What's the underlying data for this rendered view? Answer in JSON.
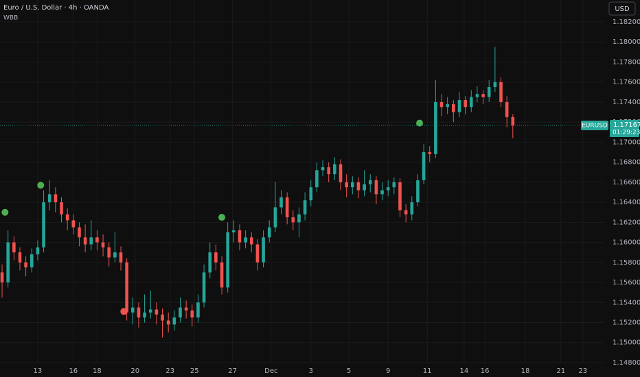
{
  "chart_data": {
    "type": "candlestick",
    "title": "Euro / U.S. Dollar · 4h · OANDA",
    "indicator": "WBB",
    "currency_button": "USD",
    "symbol": "EURUSD",
    "countdown": "01:29:23",
    "up_color": "#26a69a",
    "down_color": "#ef5350",
    "grid": true,
    "candles": [
      [
        1.157,
        1.1578,
        1.1545,
        1.156
      ],
      [
        1.156,
        1.1612,
        1.1555,
        1.16
      ],
      [
        1.16,
        1.1606,
        1.1582,
        1.159
      ],
      [
        1.159,
        1.1595,
        1.1572,
        1.158
      ],
      [
        1.158,
        1.1586,
        1.1566,
        1.1575
      ],
      [
        1.1575,
        1.1594,
        1.157,
        1.1588
      ],
      [
        1.1588,
        1.1602,
        1.1582,
        1.1595
      ],
      [
        1.1595,
        1.1652,
        1.159,
        1.164
      ],
      [
        1.164,
        1.1662,
        1.1632,
        1.1648
      ],
      [
        1.1648,
        1.1655,
        1.163,
        1.164
      ],
      [
        1.164,
        1.1645,
        1.162,
        1.1628
      ],
      [
        1.1628,
        1.1634,
        1.1612,
        1.1622
      ],
      [
        1.1622,
        1.1628,
        1.1608,
        1.1615
      ],
      [
        1.1615,
        1.162,
        1.1596,
        1.1605
      ],
      [
        1.1605,
        1.1618,
        1.159,
        1.1598
      ],
      [
        1.1598,
        1.1622,
        1.1592,
        1.1605
      ],
      [
        1.1605,
        1.1612,
        1.1592,
        1.16
      ],
      [
        1.16,
        1.1608,
        1.1586,
        1.1595
      ],
      [
        1.1595,
        1.16,
        1.1576,
        1.1585
      ],
      [
        1.1585,
        1.161,
        1.158,
        1.159
      ],
      [
        1.159,
        1.1596,
        1.1572,
        1.158
      ],
      [
        1.158,
        1.1584,
        1.1522,
        1.153
      ],
      [
        1.153,
        1.1545,
        1.1518,
        1.1535
      ],
      [
        1.1535,
        1.154,
        1.1515,
        1.1525
      ],
      [
        1.1525,
        1.1548,
        1.152,
        1.153
      ],
      [
        1.153,
        1.1552,
        1.1524,
        1.1533
      ],
      [
        1.1533,
        1.154,
        1.1518,
        1.1528
      ],
      [
        1.1528,
        1.1534,
        1.1505,
        1.1522
      ],
      [
        1.1522,
        1.153,
        1.151,
        1.1518
      ],
      [
        1.1518,
        1.1532,
        1.1512,
        1.1525
      ],
      [
        1.1525,
        1.1545,
        1.152,
        1.1535
      ],
      [
        1.1535,
        1.1542,
        1.1524,
        1.1532
      ],
      [
        1.1532,
        1.1538,
        1.1516,
        1.1525
      ],
      [
        1.1525,
        1.1548,
        1.152,
        1.154
      ],
      [
        1.154,
        1.1578,
        1.1535,
        1.157
      ],
      [
        1.157,
        1.16,
        1.1564,
        1.159
      ],
      [
        1.159,
        1.1598,
        1.1572,
        1.158
      ],
      [
        1.158,
        1.1586,
        1.1548,
        1.1555
      ],
      [
        1.1555,
        1.162,
        1.155,
        1.161
      ],
      [
        1.161,
        1.1622,
        1.16,
        1.1612
      ],
      [
        1.1612,
        1.1618,
        1.1592,
        1.16
      ],
      [
        1.16,
        1.1612,
        1.1594,
        1.1605
      ],
      [
        1.1605,
        1.161,
        1.159,
        1.1598
      ],
      [
        1.1598,
        1.1603,
        1.1572,
        1.158
      ],
      [
        1.158,
        1.1612,
        1.1575,
        1.1605
      ],
      [
        1.1605,
        1.1622,
        1.16,
        1.1615
      ],
      [
        1.1615,
        1.166,
        1.161,
        1.1635
      ],
      [
        1.1635,
        1.1652,
        1.1628,
        1.1645
      ],
      [
        1.1645,
        1.165,
        1.1618,
        1.1625
      ],
      [
        1.1625,
        1.1632,
        1.1612,
        1.162
      ],
      [
        1.162,
        1.1635,
        1.1605,
        1.1628
      ],
      [
        1.1628,
        1.165,
        1.1622,
        1.1642
      ],
      [
        1.1642,
        1.1662,
        1.1636,
        1.1655
      ],
      [
        1.1655,
        1.168,
        1.165,
        1.1672
      ],
      [
        1.1672,
        1.1682,
        1.1666,
        1.1675
      ],
      [
        1.1675,
        1.168,
        1.166,
        1.1668
      ],
      [
        1.1668,
        1.1685,
        1.1662,
        1.1678
      ],
      [
        1.1678,
        1.1683,
        1.1652,
        1.166
      ],
      [
        1.166,
        1.1668,
        1.1645,
        1.1655
      ],
      [
        1.1655,
        1.1666,
        1.1648,
        1.166
      ],
      [
        1.166,
        1.1665,
        1.1644,
        1.1652
      ],
      [
        1.1652,
        1.1672,
        1.1646,
        1.1658
      ],
      [
        1.1658,
        1.1668,
        1.165,
        1.1662
      ],
      [
        1.1662,
        1.1666,
        1.1638,
        1.1648
      ],
      [
        1.1648,
        1.166,
        1.1642,
        1.1652
      ],
      [
        1.1652,
        1.1662,
        1.1646,
        1.1655
      ],
      [
        1.1655,
        1.1665,
        1.1648,
        1.166
      ],
      [
        1.166,
        1.1664,
        1.1625,
        1.1632
      ],
      [
        1.1632,
        1.1638,
        1.162,
        1.1628
      ],
      [
        1.1628,
        1.1646,
        1.1622,
        1.164
      ],
      [
        1.164,
        1.1668,
        1.1636,
        1.1662
      ],
      [
        1.1662,
        1.1698,
        1.1658,
        1.169
      ],
      [
        1.169,
        1.1696,
        1.168,
        1.1688
      ],
      [
        1.1688,
        1.1762,
        1.1684,
        1.174
      ],
      [
        1.174,
        1.1748,
        1.1726,
        1.1735
      ],
      [
        1.1735,
        1.1745,
        1.1728,
        1.1738
      ],
      [
        1.1738,
        1.1742,
        1.172,
        1.173
      ],
      [
        1.173,
        1.175,
        1.1725,
        1.1742
      ],
      [
        1.1742,
        1.1746,
        1.1728,
        1.1735
      ],
      [
        1.1735,
        1.1752,
        1.173,
        1.1745
      ],
      [
        1.1745,
        1.1756,
        1.174,
        1.1748
      ],
      [
        1.1748,
        1.1752,
        1.1738,
        1.1745
      ],
      [
        1.1745,
        1.1762,
        1.174,
        1.1755
      ],
      [
        1.1755,
        1.1795,
        1.175,
        1.176
      ],
      [
        1.176,
        1.1765,
        1.1735,
        1.174
      ],
      [
        1.174,
        1.1746,
        1.1715,
        1.1725
      ],
      [
        1.1725,
        1.1728,
        1.1704,
        1.17167
      ]
    ],
    "signals": [
      {
        "x": 0.5,
        "y": 1.163,
        "color": "#4caf50"
      },
      {
        "x": 6.5,
        "y": 1.1657,
        "color": "#4caf50"
      },
      {
        "x": 20.5,
        "y": 1.1531,
        "color": "#f05350"
      },
      {
        "x": 37,
        "y": 1.1625,
        "color": "#4caf50"
      },
      {
        "x": 70.3,
        "y": 1.1719,
        "color": "#4caf50"
      }
    ],
    "xlim": [
      -0.35,
      101.4
    ],
    "ylim": [
      1.14793,
      1.18419
    ],
    "xticks": [
      {
        "value": 6.0,
        "label": "13"
      },
      {
        "value": 12.0,
        "label": "16"
      },
      {
        "value": 16.0,
        "label": "18"
      },
      {
        "value": 22.4,
        "label": "20"
      },
      {
        "value": 28.3,
        "label": "23"
      },
      {
        "value": 32.4,
        "label": "25"
      },
      {
        "value": 38.8,
        "label": "27"
      },
      {
        "value": 45.3,
        "label": "Dec"
      },
      {
        "value": 52.0,
        "label": "3"
      },
      {
        "value": 58.4,
        "label": "5"
      },
      {
        "value": 65.0,
        "label": "9"
      },
      {
        "value": 71.6,
        "label": "11"
      },
      {
        "value": 77.8,
        "label": "14"
      },
      {
        "value": 81.3,
        "label": "16"
      },
      {
        "value": 88.1,
        "label": "18"
      },
      {
        "value": 94.1,
        "label": "21"
      },
      {
        "value": 97.8,
        "label": "23"
      }
    ],
    "yticks": [
      {
        "value": 1.148,
        "label": "1.14800"
      },
      {
        "value": 1.15,
        "label": "1.15000"
      },
      {
        "value": 1.152,
        "label": "1.15200"
      },
      {
        "value": 1.154,
        "label": "1.15400"
      },
      {
        "value": 1.156,
        "label": "1.15600"
      },
      {
        "value": 1.158,
        "label": "1.15800"
      },
      {
        "value": 1.16,
        "label": "1.16000"
      },
      {
        "value": 1.162,
        "label": "1.16200"
      },
      {
        "value": 1.164,
        "label": "1.16400"
      },
      {
        "value": 1.166,
        "label": "1.16600"
      },
      {
        "value": 1.168,
        "label": "1.16800"
      },
      {
        "value": 1.17,
        "label": "1.17000"
      },
      {
        "value": 1.172,
        "label": "1.17200"
      },
      {
        "value": 1.174,
        "label": "1.17400"
      },
      {
        "value": 1.176,
        "label": "1.17600"
      },
      {
        "value": 1.178,
        "label": "1.17800"
      },
      {
        "value": 1.18,
        "label": "1.18000"
      },
      {
        "value": 1.182,
        "label": "1.18200"
      }
    ]
  }
}
